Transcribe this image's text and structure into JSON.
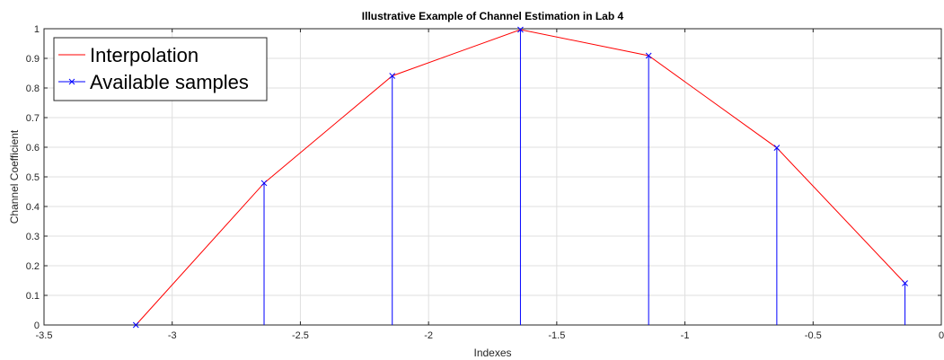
{
  "chart_data": {
    "type": "line",
    "title": "Illustrative Example of Channel Estimation in Lab 4",
    "xlabel": "Indexes",
    "ylabel": "Channel Coefficient",
    "xlim": [
      -3.5,
      0
    ],
    "ylim": [
      0,
      1
    ],
    "xticks": [
      -3.5,
      -3,
      -2.5,
      -2,
      -1.5,
      -1,
      -0.5,
      0
    ],
    "yticks": [
      0,
      0.1,
      0.2,
      0.3,
      0.4,
      0.5,
      0.6,
      0.7,
      0.8,
      0.9,
      1
    ],
    "xtick_labels": [
      "-3.5",
      "-3",
      "-2.5",
      "-2",
      "-1.5",
      "-1",
      "-0.5",
      "0"
    ],
    "ytick_labels": [
      "0",
      "0.1",
      "0.2",
      "0.3",
      "0.4",
      "0.5",
      "0.6",
      "0.7",
      "0.8",
      "0.9",
      "1"
    ],
    "grid": true,
    "legend_position": "top-left",
    "series": [
      {
        "name": "Interpolation",
        "kind": "line",
        "color": "#ff0000",
        "x": [
          -3.1416,
          -2.6416,
          -2.1416,
          -1.6416,
          -1.1416,
          -0.6416,
          -0.1416
        ],
        "y": [
          0.0,
          0.479,
          0.841,
          0.997,
          0.909,
          0.598,
          0.141
        ]
      },
      {
        "name": "Available samples",
        "kind": "stem",
        "marker": "x",
        "color": "#0000ff",
        "x": [
          -3.1416,
          -2.6416,
          -2.1416,
          -1.6416,
          -1.1416,
          -0.6416,
          -0.1416
        ],
        "y": [
          0.0,
          0.479,
          0.841,
          0.997,
          0.909,
          0.598,
          0.141
        ]
      }
    ]
  }
}
